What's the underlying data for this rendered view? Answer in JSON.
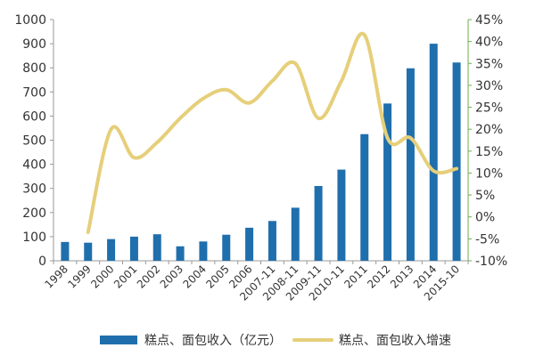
{
  "chart_data": {
    "type": "bar+line",
    "categories": [
      "1998",
      "1999",
      "2000",
      "2001",
      "2002",
      "2003",
      "2004",
      "2005",
      "2006",
      "2007-11",
      "2008-11",
      "2009-11",
      "2010-11",
      "2011",
      "2012",
      "2013",
      "2014",
      "2015-10"
    ],
    "series": [
      {
        "name": "糕点、面包收入（亿元）",
        "type": "bar",
        "axis": "left",
        "color": "#1f6fad",
        "values": [
          78,
          75,
          90,
          100,
          110,
          60,
          80,
          108,
          137,
          165,
          220,
          310,
          378,
          525,
          652,
          798,
          900,
          822
        ]
      },
      {
        "name": "糕点、面包收入增速",
        "type": "line",
        "axis": "right",
        "unit": "%",
        "color": "#e6cf7a",
        "values": [
          null,
          -3.5,
          20.0,
          13.5,
          17.0,
          22.5,
          27.0,
          29.0,
          26.0,
          31.0,
          35.0,
          22.5,
          31.0,
          41.5,
          18.0,
          18.0,
          10.5,
          11.0
        ]
      }
    ],
    "left_axis": {
      "min": 0,
      "max": 1000,
      "step": 100,
      "ticks": [
        "0",
        "100",
        "200",
        "300",
        "400",
        "500",
        "600",
        "700",
        "800",
        "900",
        "1000"
      ]
    },
    "right_axis": {
      "min": -10,
      "max": 45,
      "step": 5,
      "ticks": [
        "-10%",
        "-5%",
        "0%",
        "5%",
        "10%",
        "15%",
        "20%",
        "25%",
        "30%",
        "35%",
        "40%",
        "45%"
      ],
      "color": "#6ab04c"
    },
    "legend_position": "bottom",
    "grid": false
  }
}
